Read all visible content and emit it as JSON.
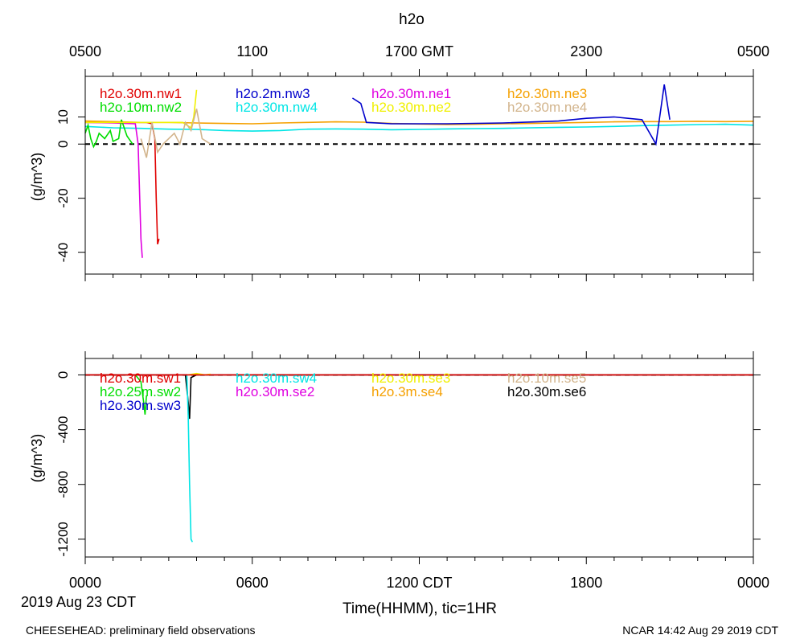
{
  "chart_data": [
    {
      "type": "line",
      "title": "h2o",
      "top_axis": {
        "ticks": [
          "0500",
          "1100",
          "1700 GMT",
          "2300",
          "0500"
        ]
      },
      "ylabel": "(g/m^3)",
      "ylim": [
        -48,
        25
      ],
      "yticks": [
        10,
        0,
        -20,
        -40
      ],
      "reference_line": 0,
      "legend": [
        {
          "name": "h2o.30m.nw1",
          "color": "#e00000"
        },
        {
          "name": "h2o.2m.nw3",
          "color": "#0000cc"
        },
        {
          "name": "h2o.30m.ne1",
          "color": "#e000e0"
        },
        {
          "name": "h2o.30m.ne3",
          "color": "#f5a000"
        },
        {
          "name": "h2o.10m.nw2",
          "color": "#00dd00"
        },
        {
          "name": "h2o.30m.nw4",
          "color": "#00e5e5"
        },
        {
          "name": "h2o.30m.ne2",
          "color": "#f0f000"
        },
        {
          "name": "h2o.30m.ne4",
          "color": "#d2b48c"
        }
      ],
      "series": [
        {
          "name": "h2o.30m.ne3",
          "color": "#f5a000",
          "x": [
            0,
            1,
            2,
            3,
            4,
            5,
            6,
            7,
            8,
            9,
            10,
            11,
            12,
            13,
            14,
            15,
            16,
            17,
            18,
            19,
            20,
            21,
            22,
            23,
            24
          ],
          "values": [
            8.5,
            8.3,
            8,
            8,
            7.8,
            7.6,
            7.5,
            7.8,
            8,
            8.2,
            8.1,
            7.6,
            7.4,
            7.2,
            7.3,
            7.5,
            7.6,
            7.8,
            8,
            8.2,
            8.3,
            8.3,
            8.4,
            8.3,
            8.4
          ]
        },
        {
          "name": "h2o.30m.nw4",
          "color": "#00e5e5",
          "x": [
            0,
            1,
            2,
            3,
            4,
            5,
            6,
            7,
            8,
            9,
            10,
            11,
            12,
            13,
            14,
            15,
            16,
            17,
            18,
            19,
            20,
            21,
            22,
            23,
            24
          ],
          "values": [
            6.5,
            6,
            5.8,
            5.5,
            5.4,
            5,
            4.8,
            5,
            5.5,
            5.6,
            5.5,
            5.3,
            5.4,
            5.6,
            5.7,
            5.8,
            6,
            6.2,
            6.3,
            6.5,
            6.8,
            7,
            7.2,
            7.3,
            7
          ]
        },
        {
          "name": "h2o.30m.nw1",
          "color": "#e00000",
          "x": [
            0,
            1,
            2,
            2.2,
            2.4,
            2.5,
            2.55,
            2.6,
            2.65
          ],
          "values": [
            8,
            8,
            8,
            8,
            7.5,
            2,
            -20,
            -37,
            -35
          ]
        },
        {
          "name": "h2o.30m.ne1",
          "color": "#e000e0",
          "x": [
            0,
            1,
            1.8,
            1.9,
            2.0,
            2.05
          ],
          "values": [
            8,
            7.8,
            7.5,
            0,
            -35,
            -42
          ]
        },
        {
          "name": "h2o.10m.nw2",
          "color": "#00dd00",
          "x": [
            0,
            0.1,
            0.2,
            0.3,
            0.4,
            0.5,
            0.7,
            0.9,
            1.0,
            1.2,
            1.3,
            1.5,
            1.7
          ],
          "values": [
            4,
            7,
            2,
            -1,
            1,
            4,
            2,
            5,
            1,
            2,
            9,
            3,
            0
          ]
        },
        {
          "name": "h2o.30m.ne2",
          "color": "#f0f000",
          "x": [
            0,
            1,
            2,
            3,
            3.5,
            3.8,
            3.9,
            4.0
          ],
          "values": [
            8,
            8,
            8,
            8,
            8,
            6,
            10,
            20
          ]
        },
        {
          "name": "h2o.30m.ne4",
          "color": "#d2b48c",
          "x": [
            2,
            2.2,
            2.4,
            2.6,
            2.8,
            3.2,
            3.4,
            3.6,
            3.8,
            4.0,
            4.2,
            4.5
          ],
          "values": [
            2,
            -5,
            8,
            -3,
            0,
            4,
            0,
            8,
            5,
            13,
            2,
            0
          ]
        },
        {
          "name": "h2o.2m.nw3",
          "color": "#0000cc",
          "x": [
            9.6,
            9.9,
            10.1,
            11,
            13,
            15,
            17,
            18,
            19,
            20,
            20.5,
            20.8,
            21
          ],
          "values": [
            17,
            15,
            8,
            7.5,
            7.5,
            7.8,
            8.5,
            9.5,
            10,
            9,
            0,
            22,
            9
          ]
        }
      ]
    },
    {
      "type": "line",
      "xlabel": "Time(HHMM), tic=1HR",
      "ylabel": "(g/m^3)",
      "ylim": [
        -1330,
        120
      ],
      "yticks": [
        0,
        -400,
        -800,
        -1200
      ],
      "xticks": [
        "0000",
        "0600",
        "1200 CDT",
        "1800",
        "0000"
      ],
      "date_label": "2019 Aug 23 CDT",
      "reference_line": 0,
      "legend": [
        {
          "name": "h2o.30m.sw1",
          "color": "#e00000"
        },
        {
          "name": "h2o.30m.sw4",
          "color": "#00e5e5"
        },
        {
          "name": "h2o.30m.se3",
          "color": "#f0f000"
        },
        {
          "name": "h2o.10m.se5",
          "color": "#d2b48c"
        },
        {
          "name": "h2o.25m.sw2",
          "color": "#00dd00"
        },
        {
          "name": "h2o.30m.se2",
          "color": "#e000e0"
        },
        {
          "name": "h2o.3m.se4",
          "color": "#f5a000"
        },
        {
          "name": "h2o.30m.se6",
          "color": "#000000"
        },
        {
          "name": "h2o.30m.sw3",
          "color": "#0000cc"
        }
      ],
      "series": [
        {
          "name": "h2o.30m.se6",
          "color": "#000000",
          "x": [
            0,
            3,
            3.6,
            3.7,
            3.75,
            3.8,
            4,
            8,
            12,
            16,
            20,
            24
          ],
          "values": [
            0,
            0,
            0,
            -200,
            -320,
            -20,
            0,
            0,
            0,
            0,
            0,
            0
          ]
        },
        {
          "name": "h2o.25m.sw2",
          "color": "#00dd00",
          "x": [
            1.8,
            2.0,
            2.1,
            2.15,
            2.2
          ],
          "values": [
            0,
            -50,
            -200,
            -290,
            -150
          ]
        },
        {
          "name": "h2o.30m.sw4",
          "color": "#00e5e5",
          "x": [
            3.65,
            3.7,
            3.75,
            3.8,
            3.85
          ],
          "values": [
            0,
            -300,
            -800,
            -1200,
            -1220
          ]
        },
        {
          "name": "h2o.30m.se3",
          "color": "#f0f000",
          "x": [
            3.7,
            4.0,
            4.3,
            4.5
          ],
          "values": [
            0,
            10,
            0,
            5
          ]
        },
        {
          "name": "h2o.30m.sw1",
          "color": "#e00000",
          "x": [
            0,
            4,
            8,
            12,
            16,
            20,
            24
          ],
          "values": [
            0,
            0,
            0,
            0,
            0,
            0,
            0
          ]
        }
      ]
    }
  ],
  "footer": {
    "left": "CHEESEHEAD: preliminary field observations",
    "right": "NCAR 14:42 Aug 29 2019 CDT"
  }
}
